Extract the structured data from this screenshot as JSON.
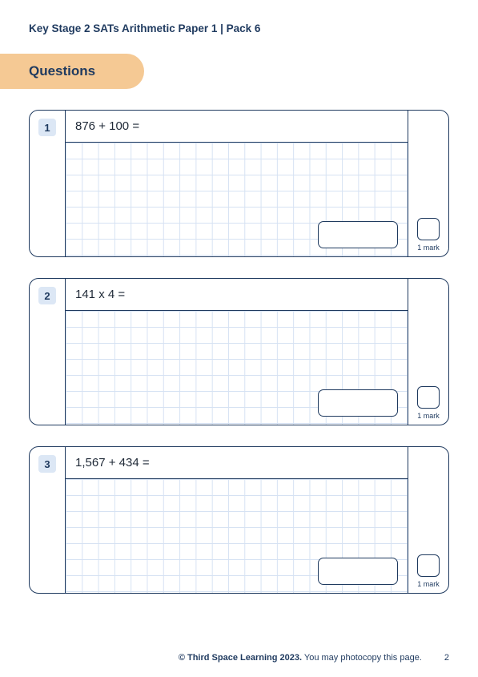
{
  "header": {
    "title": "Key Stage 2 SATs Arithmetic Paper 1 | Pack 6"
  },
  "section": {
    "label": "Questions"
  },
  "questions": [
    {
      "number": "1",
      "text": "876 + 100 =",
      "mark_label": "1 mark"
    },
    {
      "number": "2",
      "text": "141 x 4 =",
      "mark_label": "1 mark"
    },
    {
      "number": "3",
      "text": "1,567 + 434 =",
      "mark_label": "1 mark"
    }
  ],
  "footer": {
    "copyright_bold": "© Third Space Learning 2023.",
    "copyright_rest": " You may photocopy this page.",
    "page_number": "2"
  },
  "colors": {
    "primary": "#1f3a5f",
    "tab_bg": "#f5c994",
    "num_bg": "#dce7f5",
    "grid_line": "#d6e2f3",
    "page_bg": "#ffffff"
  }
}
